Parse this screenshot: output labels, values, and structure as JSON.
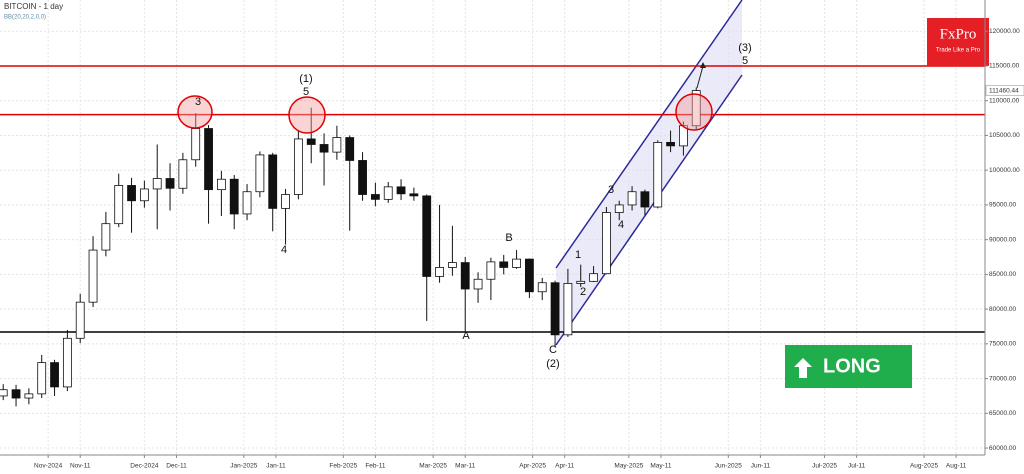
{
  "chart_data": {
    "type": "candlestick",
    "title": "BITCOIN - 1 day",
    "subtitle": "BB(20,20,2,0,0)",
    "x": [
      "2024-10-18",
      "2024-10-22",
      "2024-10-26",
      "2024-10-30",
      "2024-11-03",
      "2024-11-07",
      "2024-11-11",
      "2024-11-15",
      "2024-11-19",
      "2024-11-23",
      "2024-11-27",
      "2024-12-01",
      "2024-12-05",
      "2024-12-09",
      "2024-12-13",
      "2024-12-17",
      "2024-12-21",
      "2024-12-25",
      "2024-12-29",
      "2025-01-02",
      "2025-01-06",
      "2025-01-10",
      "2025-01-14",
      "2025-01-18",
      "2025-01-22",
      "2025-01-26",
      "2025-01-30",
      "2025-02-03",
      "2025-02-07",
      "2025-02-11",
      "2025-02-15",
      "2025-02-19",
      "2025-02-23",
      "2025-02-27",
      "2025-03-03",
      "2025-03-07",
      "2025-03-11",
      "2025-03-15",
      "2025-03-19",
      "2025-03-23",
      "2025-03-27",
      "2025-03-31",
      "2025-04-04",
      "2025-04-08",
      "2025-04-12",
      "2025-04-16",
      "2025-04-20",
      "2025-04-24",
      "2025-04-28",
      "2025-05-02",
      "2025-05-06",
      "2025-05-10",
      "2025-05-14",
      "2025-05-18",
      "2025-05-22"
    ],
    "open": [
      67500,
      68400,
      67200,
      67800,
      72300,
      68800,
      75800,
      81000,
      88500,
      92300,
      97800,
      95600,
      97300,
      98800,
      97400,
      101500,
      106000,
      97200,
      98700,
      93700,
      96900,
      102200,
      94500,
      96500,
      104500,
      103700,
      102600,
      104700,
      101400,
      96500,
      95800,
      97600,
      96600,
      96300,
      84700,
      86000,
      86700,
      82900,
      84300,
      86800,
      86000,
      87200,
      82500,
      83800,
      76300,
      83700,
      84000,
      85100,
      93900,
      95000,
      96900,
      94700,
      104000,
      103500,
      106400
    ],
    "high": [
      69200,
      69100,
      68600,
      73400,
      72700,
      77000,
      82200,
      90500,
      94000,
      99500,
      98900,
      98500,
      103700,
      101000,
      102500,
      108200,
      106500,
      99900,
      99300,
      98000,
      102700,
      102500,
      97300,
      105800,
      109000,
      105300,
      106400,
      105000,
      102600,
      98200,
      98300,
      98700,
      97500,
      96500,
      95000,
      92000,
      87500,
      85300,
      87400,
      87800,
      88500,
      87300,
      84500,
      84100,
      85800,
      86400,
      86200,
      94700,
      95600,
      97700,
      97200,
      104300,
      105700,
      107000,
      111900
    ],
    "low": [
      66900,
      66000,
      66300,
      67200,
      67500,
      68200,
      75100,
      80300,
      87600,
      91800,
      91000,
      94600,
      91500,
      94200,
      96600,
      100500,
      92300,
      93400,
      91500,
      92800,
      96100,
      91200,
      89300,
      95800,
      101000,
      97800,
      101500,
      91300,
      95600,
      94800,
      95300,
      95700,
      95600,
      78300,
      83800,
      84800,
      76600,
      80900,
      81300,
      85000,
      85800,
      81600,
      81300,
      74500,
      76000,
      83200,
      83900,
      85000,
      92800,
      94200,
      93500,
      94500,
      102600,
      102100,
      105800
    ],
    "close": [
      68400,
      67200,
      67800,
      72300,
      68800,
      75800,
      81000,
      88500,
      92300,
      97800,
      95600,
      97300,
      98800,
      97400,
      101500,
      106000,
      97200,
      98700,
      93700,
      96900,
      102200,
      94500,
      96500,
      104500,
      103700,
      102600,
      104700,
      101400,
      96500,
      95800,
      97600,
      96600,
      96300,
      84700,
      86000,
      86700,
      82900,
      84300,
      86800,
      86000,
      87200,
      82500,
      83800,
      76300,
      83700,
      84000,
      85100,
      93900,
      95000,
      96900,
      94700,
      104000,
      103500,
      106400,
      111460.44
    ],
    "last_price": 111460.44,
    "xlim": [
      "2024-10-17",
      "2025-08-20"
    ],
    "xticks": [
      {
        "value": "2024-11-01",
        "label": "Nov-2024"
      },
      {
        "value": "2024-11-11",
        "label": "Nov-11"
      },
      {
        "value": "2024-12-01",
        "label": "Dec-2024"
      },
      {
        "value": "2024-12-11",
        "label": "Dec-11"
      },
      {
        "value": "2025-01-01",
        "label": "Jan-2025"
      },
      {
        "value": "2025-01-11",
        "label": "Jan-11"
      },
      {
        "value": "2025-02-01",
        "label": "Feb-2025"
      },
      {
        "value": "2025-02-11",
        "label": "Feb-11"
      },
      {
        "value": "2025-03-01",
        "label": "Mar-2025"
      },
      {
        "value": "2025-03-11",
        "label": "Mar-11"
      },
      {
        "value": "2025-04-01",
        "label": "Apr-2025"
      },
      {
        "value": "2025-04-11",
        "label": "Apr-11"
      },
      {
        "value": "2025-05-01",
        "label": "May-2025"
      },
      {
        "value": "2025-05-11",
        "label": "May-11"
      },
      {
        "value": "2025-06-01",
        "label": "Jun-2025"
      },
      {
        "value": "2025-06-11",
        "label": "Jun-11"
      },
      {
        "value": "2025-07-01",
        "label": "Jul-2025"
      },
      {
        "value": "2025-07-11",
        "label": "Jul-11"
      },
      {
        "value": "2025-08-01",
        "label": "Aug-2025"
      },
      {
        "value": "2025-08-11",
        "label": "Aug-11"
      }
    ],
    "ylim": [
      59000,
      124500
    ],
    "yticks": [
      {
        "value": 60000,
        "label": "60000.00"
      },
      {
        "value": 65000,
        "label": "65000.00"
      },
      {
        "value": 70000,
        "label": "70000.00"
      },
      {
        "value": 75000,
        "label": "75000.00"
      },
      {
        "value": 80000,
        "label": "80000.00"
      },
      {
        "value": 85000,
        "label": "85000.00"
      },
      {
        "value": 90000,
        "label": "90000.00"
      },
      {
        "value": 95000,
        "label": "95000.00"
      },
      {
        "value": 100000,
        "label": "100000.00"
      },
      {
        "value": 105000,
        "label": "105000.00"
      },
      {
        "value": 110000,
        "label": "110000.00"
      },
      {
        "value": 115000,
        "label": "115000.00"
      },
      {
        "value": 120000,
        "label": "120000.00"
      }
    ],
    "grid": true,
    "levels": [
      {
        "value": 115000,
        "color": "#e00000"
      },
      {
        "value": 108000,
        "color": "#e00000"
      },
      {
        "value": 76700,
        "color": "#000000"
      }
    ],
    "waves": [
      "3",
      "(1)",
      "5",
      "4",
      "A",
      "B",
      "C",
      "(2)",
      "1",
      "2",
      "3",
      "4",
      "(3)",
      "5"
    ],
    "brand": {
      "name": "FxPro",
      "tagline": "Trade Like a Pro"
    },
    "signal": "LONG"
  }
}
